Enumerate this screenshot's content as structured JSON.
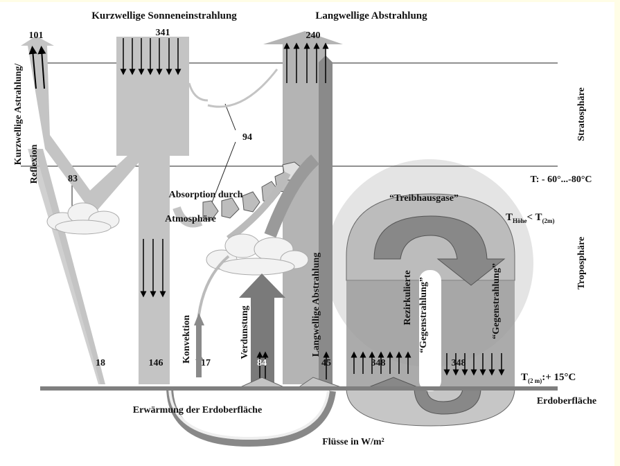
{
  "titles": {
    "shortwave_in": "Kurzwellige Sonneneinstrahlung",
    "longwave_out": "Langwellige Abstrahlung"
  },
  "values": {
    "reflected_total": "101",
    "solar_in": "341",
    "lw_out": "240",
    "reflected_atmos": "83",
    "absorbed_atmos": "94",
    "reflected_surface": "18",
    "absorbed_surface": "146",
    "convection": "17",
    "evaporation": "84",
    "lw_window": "45",
    "back_up": "348",
    "back_down": "348"
  },
  "labels": {
    "reflection_1": "Kurzwellige Astrahlung/",
    "reflection_2": "Reflexion",
    "absorption_1": "Absorption durch",
    "absorption_2": "Atmosphäre",
    "convection": "Konvektion",
    "evaporation": "Verdunstung",
    "lw_radiation": "Langwellige Abstrahlung",
    "recirculated": "Rezirkulierte",
    "counter_rad_1": "“Gegenstrahlung”",
    "counter_rad_2": "“Gegenstrahlung”",
    "greenhouse": "“Treibhausgase”",
    "surface_warming": "Erwärmung der Erdoberfläche",
    "fluxes_unit": "Flüsse in W/m²",
    "stratosphere": "Stratosphäre",
    "troposphere": "Troposphäre",
    "tropopause_temp": "T: - 60°...-80°C",
    "t_height": "T",
    "t_height_sub": "Höhe",
    "t_lt": "< T",
    "t_2m_sub": "(2m)",
    "t_surface": "T",
    "t_surface_sub": "(2 m)",
    "t_surface_val": ":+ 15°C",
    "surface": "Erdoberfläche"
  },
  "colors": {
    "background": "#ffffff",
    "border": "#fffde6",
    "flow_light": "#c4c4c4",
    "flow_mid": "#a8a8a8",
    "flow_dark": "#7a7a7a",
    "ground": "#7f7f7f",
    "greenhouse_halo": "#e4e4e4"
  }
}
